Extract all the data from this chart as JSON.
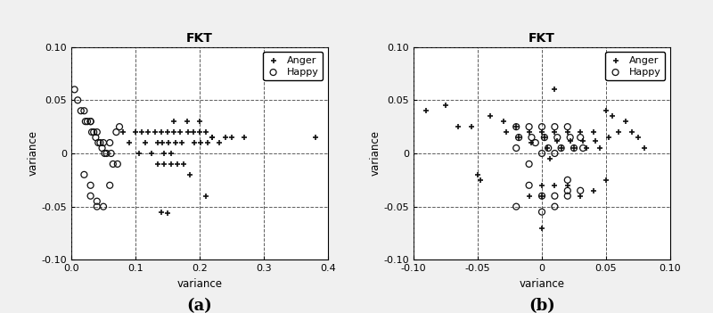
{
  "title": "FKT",
  "xlabel": "variance",
  "ylabel": "variance",
  "subplot_labels": [
    "(a)",
    "(b)"
  ],
  "plot_a": {
    "xlim": [
      0,
      0.4
    ],
    "ylim": [
      -0.1,
      0.1
    ],
    "xticks": [
      0,
      0.1,
      0.2,
      0.3,
      0.4
    ],
    "yticks": [
      -0.1,
      -0.05,
      0,
      0.05,
      0.1
    ],
    "anger_x": [
      0.08,
      0.09,
      0.1,
      0.105,
      0.11,
      0.115,
      0.12,
      0.125,
      0.13,
      0.135,
      0.14,
      0.142,
      0.145,
      0.15,
      0.152,
      0.155,
      0.16,
      0.163,
      0.17,
      0.172,
      0.18,
      0.182,
      0.19,
      0.192,
      0.2,
      0.202,
      0.21,
      0.212,
      0.22,
      0.23,
      0.24,
      0.25,
      0.27,
      0.135,
      0.145,
      0.155,
      0.165,
      0.175,
      0.185,
      0.14,
      0.15,
      0.16,
      0.2,
      0.21,
      0.22,
      0.38
    ],
    "anger_y": [
      0.02,
      0.01,
      0.02,
      0.0,
      0.02,
      0.01,
      0.02,
      0.0,
      0.02,
      0.01,
      0.02,
      0.01,
      0.0,
      0.02,
      0.01,
      0.0,
      0.02,
      0.01,
      0.02,
      0.01,
      0.03,
      0.02,
      0.02,
      0.01,
      0.02,
      0.01,
      0.02,
      0.01,
      0.015,
      0.01,
      0.015,
      0.015,
      0.015,
      -0.01,
      -0.01,
      -0.01,
      -0.01,
      -0.01,
      -0.02,
      -0.055,
      -0.056,
      0.03,
      0.03,
      -0.04,
      0.015,
      0.015
    ],
    "happy_x": [
      0.005,
      0.01,
      0.015,
      0.02,
      0.022,
      0.025,
      0.03,
      0.032,
      0.035,
      0.038,
      0.04,
      0.042,
      0.045,
      0.048,
      0.05,
      0.052,
      0.055,
      0.06,
      0.062,
      0.065,
      0.07,
      0.072,
      0.075,
      0.02,
      0.03,
      0.04,
      0.05,
      0.06,
      0.03,
      0.04,
      0.03
    ],
    "happy_y": [
      0.06,
      0.05,
      0.04,
      0.04,
      0.03,
      0.03,
      0.03,
      0.02,
      0.02,
      0.015,
      0.02,
      0.01,
      0.01,
      0.005,
      0.01,
      0.0,
      0.0,
      0.01,
      0.0,
      -0.01,
      0.02,
      -0.01,
      0.025,
      -0.02,
      -0.03,
      -0.045,
      -0.05,
      -0.03,
      -0.04,
      -0.05,
      0.03
    ]
  },
  "plot_b": {
    "xlim": [
      -0.1,
      0.1
    ],
    "ylim": [
      -0.1,
      0.1
    ],
    "xticks": [
      -0.1,
      -0.05,
      0,
      0.05,
      0.1
    ],
    "yticks": [
      -0.1,
      -0.05,
      0,
      0.05,
      0.1
    ],
    "anger_x": [
      -0.09,
      -0.075,
      -0.065,
      -0.04,
      -0.03,
      -0.028,
      -0.02,
      -0.018,
      -0.01,
      -0.008,
      0.0,
      0.002,
      0.004,
      0.006,
      0.01,
      0.012,
      0.015,
      0.02,
      0.022,
      0.025,
      0.03,
      0.032,
      0.035,
      0.04,
      0.042,
      0.045,
      0.05,
      0.052,
      0.06,
      0.065,
      0.07,
      0.075,
      0.08,
      -0.05,
      -0.048,
      0.0,
      0.01,
      0.02,
      0.0,
      -0.01,
      0.03,
      0.04,
      0.05,
      0.0,
      0.01,
      -0.055,
      0.055
    ],
    "anger_y": [
      0.04,
      0.045,
      0.025,
      0.035,
      0.03,
      0.02,
      0.025,
      0.015,
      0.02,
      0.01,
      0.02,
      0.015,
      0.005,
      -0.005,
      0.02,
      0.012,
      0.005,
      0.02,
      0.012,
      0.005,
      0.02,
      0.012,
      0.005,
      0.02,
      0.012,
      0.005,
      0.04,
      0.015,
      0.02,
      0.03,
      0.02,
      0.015,
      0.005,
      -0.02,
      -0.025,
      -0.03,
      -0.03,
      -0.03,
      -0.04,
      -0.04,
      -0.04,
      -0.035,
      -0.025,
      -0.07,
      0.06,
      0.025,
      0.035
    ],
    "happy_x": [
      -0.02,
      -0.018,
      -0.01,
      -0.008,
      -0.005,
      0.0,
      0.002,
      0.005,
      0.01,
      0.012,
      0.015,
      0.02,
      0.022,
      0.025,
      0.03,
      0.032,
      -0.01,
      0.0,
      0.01,
      -0.02,
      0.01,
      0.02,
      0.0,
      -0.01,
      0.02,
      0.03,
      0.01,
      0.0,
      0.02,
      -0.02
    ],
    "happy_y": [
      0.025,
      0.015,
      0.025,
      0.015,
      0.01,
      0.025,
      0.015,
      0.005,
      0.025,
      0.015,
      0.005,
      0.025,
      0.015,
      0.005,
      0.015,
      0.005,
      -0.03,
      -0.04,
      -0.04,
      -0.05,
      -0.05,
      -0.04,
      -0.055,
      -0.01,
      -0.035,
      -0.035,
      0.0,
      0.0,
      -0.025,
      0.005
    ]
  },
  "marker_anger": "+",
  "marker_happy": "o",
  "marker_size_anger": 5,
  "marker_size_happy": 5,
  "color_anger": "#111111",
  "color_happy": "#111111",
  "legend_labels": [
    "Anger",
    "Happy"
  ],
  "grid_style": "--",
  "grid_color": "#333333",
  "background_color": "#ffffff",
  "fig_facecolor": "#f0f0f0"
}
